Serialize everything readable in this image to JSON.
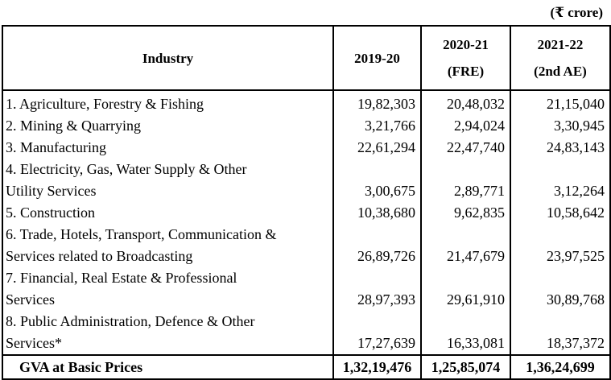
{
  "unit": "(₹ crore)",
  "header": {
    "industry": "Industry",
    "col1": "2019-20",
    "col2_line1": "2020-21",
    "col2_line2": "(FRE)",
    "col3_line1": "2021-22",
    "col3_line2": "(2nd AE)"
  },
  "rows": [
    {
      "line1": "1. Agriculture, Forestry & Fishing",
      "line2": "",
      "v1": "19,82,303",
      "v2": "20,48,032",
      "v3": "21,15,040"
    },
    {
      "line1": "2. Mining & Quarrying",
      "line2": "",
      "v1": "3,21,766",
      "v2": "2,94,024",
      "v3": "3,30,945"
    },
    {
      "line1": "3. Manufacturing",
      "line2": "",
      "v1": "22,61,294",
      "v2": "22,47,740",
      "v3": "24,83,143"
    },
    {
      "line1": "4. Electricity, Gas, Water Supply & Other",
      "line2": "Utility Services",
      "v1": "3,00,675",
      "v2": "2,89,771",
      "v3": "3,12,264"
    },
    {
      "line1": "5. Construction",
      "line2": "",
      "v1": "10,38,680",
      "v2": "9,62,835",
      "v3": "10,58,642"
    },
    {
      "line1": "6. Trade, Hotels, Transport, Communication &",
      "line2": "Services related to Broadcasting",
      "v1": "26,89,726",
      "v2": "21,47,679",
      "v3": "23,97,525"
    },
    {
      "line1": "7. Financial, Real Estate & Professional",
      "line2": "Services",
      "v1": "28,97,393",
      "v2": "29,61,910",
      "v3": "30,89,768"
    },
    {
      "line1": "8. Public Administration, Defence & Other",
      "line2": "Services*",
      "v1": "17,27,639",
      "v2": "16,33,081",
      "v3": "18,37,372"
    }
  ],
  "total": {
    "label": "GVA at Basic Prices",
    "v1": "1,32,19,476",
    "v2": "1,25,85,074",
    "v3": "1,36,24,699"
  }
}
